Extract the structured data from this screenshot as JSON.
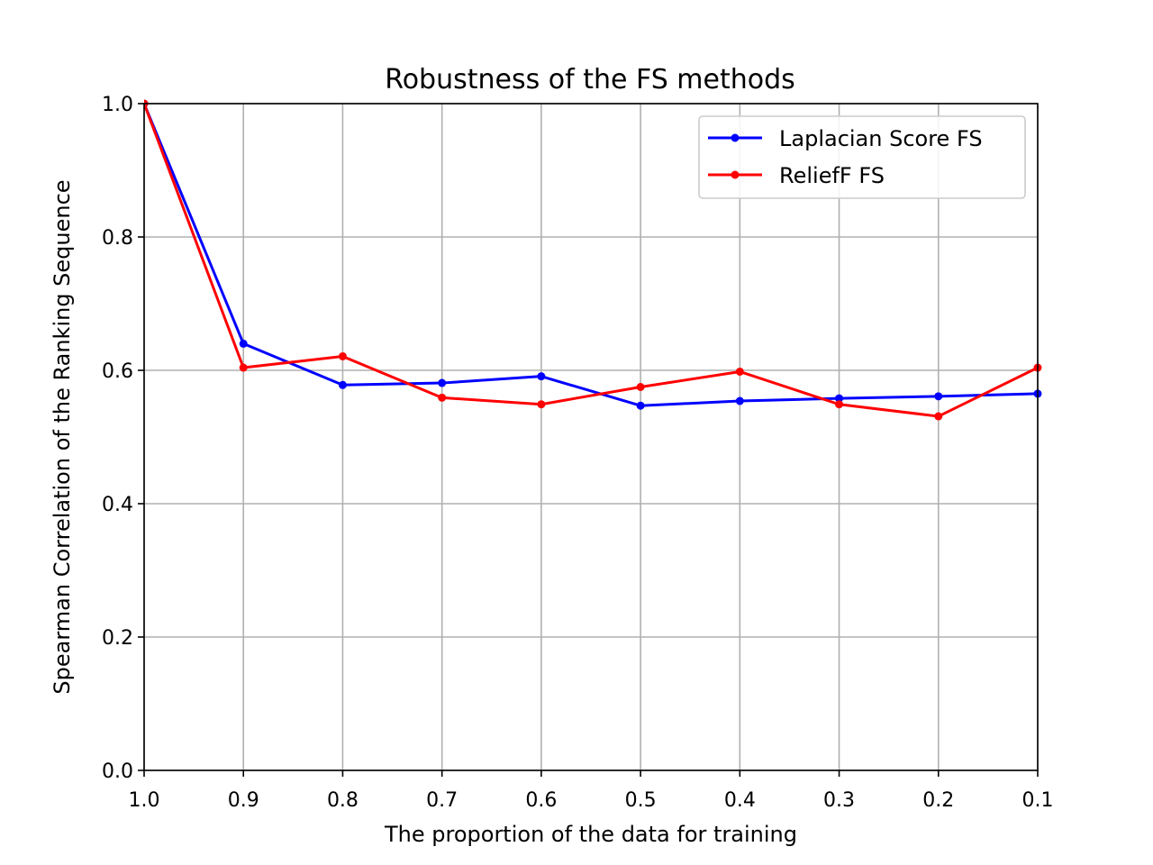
{
  "chart_data": {
    "type": "line",
    "title": "Robustness of the FS methods",
    "xlabel": "The proportion of the data for training",
    "ylabel": "Spearman Correlation of the Ranking Sequence",
    "x": [
      1.0,
      0.9,
      0.8,
      0.7,
      0.6,
      0.5,
      0.4,
      0.3,
      0.2,
      0.1
    ],
    "xlim": [
      1.0,
      0.1
    ],
    "ylim": [
      0.0,
      1.0
    ],
    "x_ticks": [
      "1.0",
      "0.9",
      "0.8",
      "0.7",
      "0.6",
      "0.5",
      "0.4",
      "0.3",
      "0.2",
      "0.1"
    ],
    "y_ticks": [
      "0.0",
      "0.2",
      "0.4",
      "0.6",
      "0.8",
      "1.0"
    ],
    "y_tick_values": [
      0.0,
      0.2,
      0.4,
      0.6,
      0.8,
      1.0
    ],
    "grid": true,
    "legend_position": "top-right",
    "series": [
      {
        "name": "Laplacian Score FS",
        "color": "#0000ff",
        "marker": "circle",
        "values": [
          1.0,
          0.64,
          0.578,
          0.581,
          0.591,
          0.547,
          0.554,
          0.558,
          0.561,
          0.565
        ]
      },
      {
        "name": "ReliefF FS",
        "color": "#ff0000",
        "marker": "circle",
        "values": [
          1.0,
          0.604,
          0.621,
          0.559,
          0.549,
          0.575,
          0.598,
          0.549,
          0.531,
          0.604
        ]
      }
    ]
  }
}
